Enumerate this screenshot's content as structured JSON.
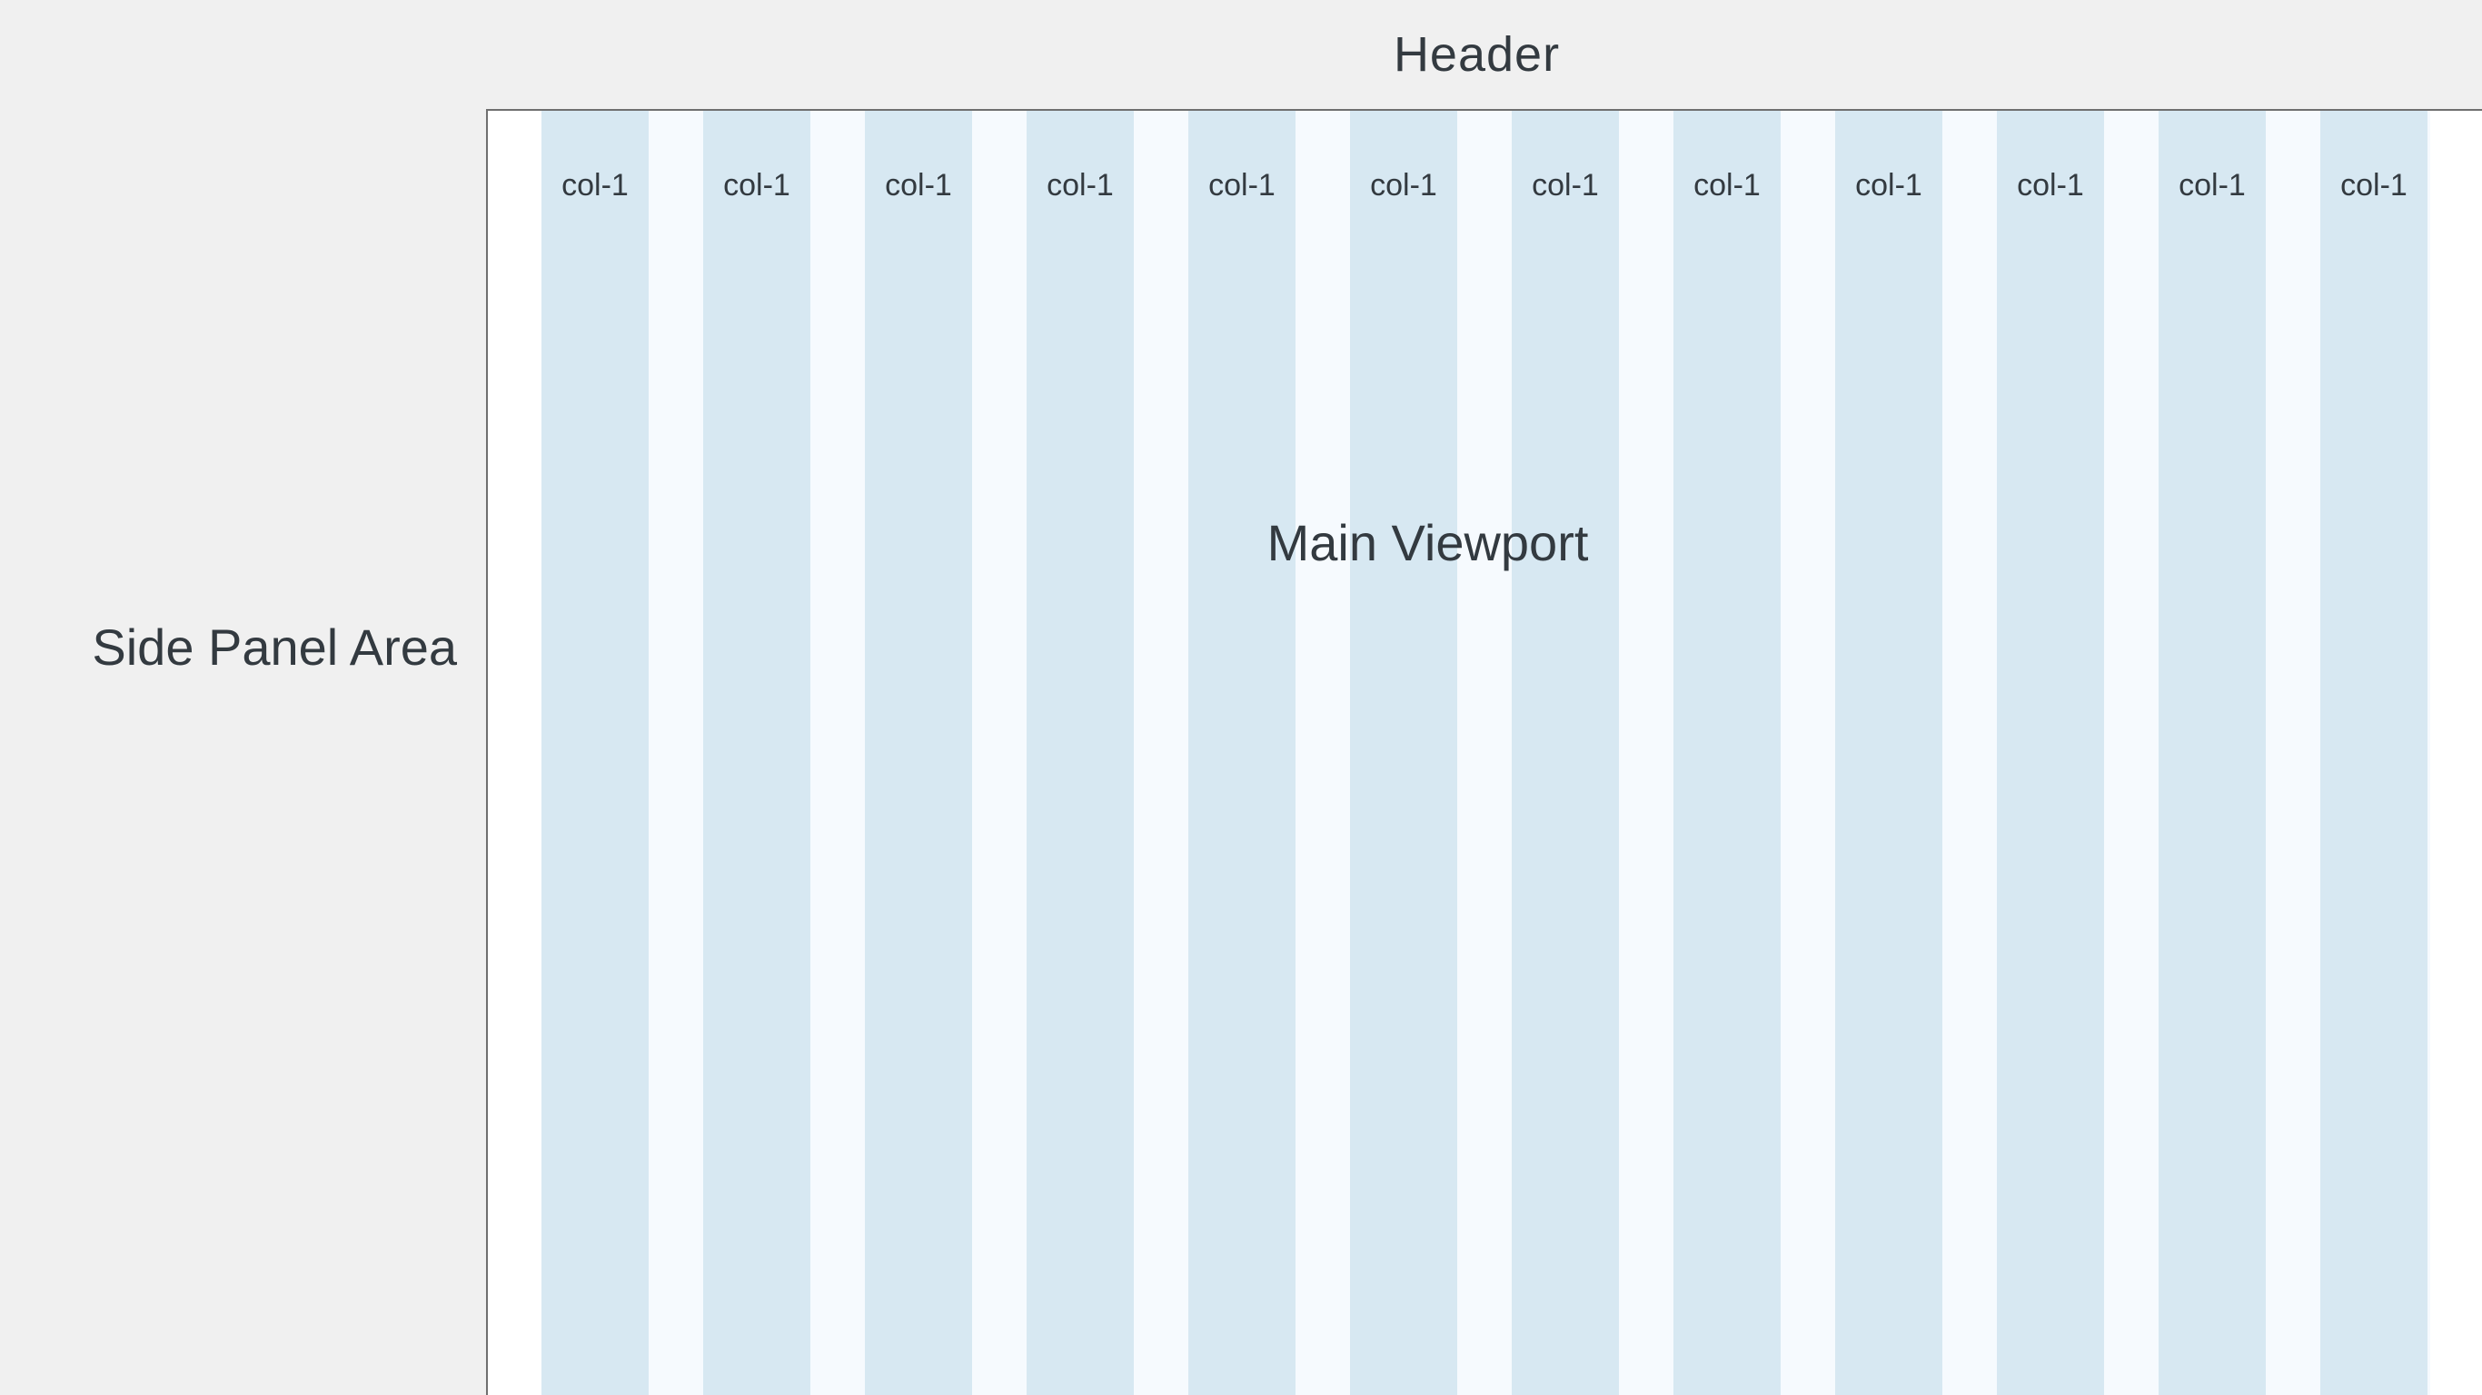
{
  "header": {
    "label": "Header"
  },
  "side_panel": {
    "label": "Side Panel Area"
  },
  "main_viewport": {
    "label": "Main Viewport",
    "columns": [
      {
        "label": "col-1"
      },
      {
        "label": "col-1"
      },
      {
        "label": "col-1"
      },
      {
        "label": "col-1"
      },
      {
        "label": "col-1"
      },
      {
        "label": "col-1"
      },
      {
        "label": "col-1"
      },
      {
        "label": "col-1"
      },
      {
        "label": "col-1"
      },
      {
        "label": "col-1"
      },
      {
        "label": "col-1"
      },
      {
        "label": "col-1"
      }
    ]
  },
  "colors": {
    "background": "#f0f0f0",
    "viewport": "#ffffff",
    "column": "#d7e8f2",
    "gutter": "#f6fafe",
    "border": "#6f6f6f",
    "text": "#333a40"
  }
}
